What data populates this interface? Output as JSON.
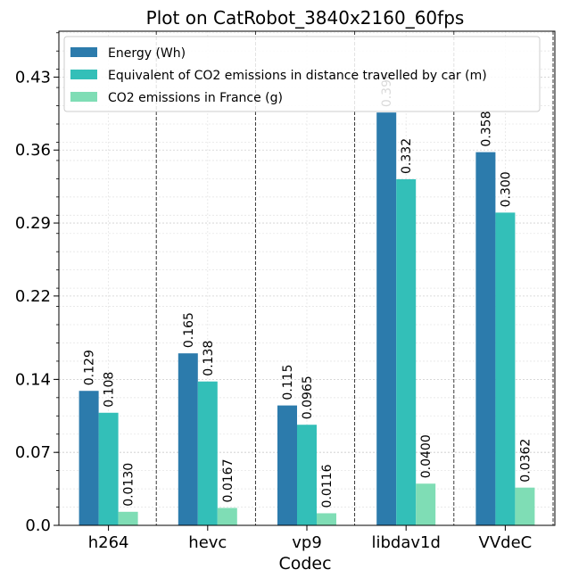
{
  "chart_data": {
    "type": "bar",
    "title": "Plot on CatRobot_3840x2160_60fps",
    "xlabel": "Codec",
    "ylabel": "",
    "categories": [
      "h264",
      "hevc",
      "vp9",
      "libdav1d",
      "VVdeC"
    ],
    "series": [
      {
        "name": "Energy (Wh)",
        "values": [
          0.129,
          0.165,
          0.115,
          0.396,
          0.358
        ],
        "labels": [
          "0.129",
          "0.165",
          "0.115",
          "0.396",
          "0.358"
        ],
        "color": "#2c7bac"
      },
      {
        "name": "Equivalent of CO2 emissions in distance travelled by car (m)",
        "values": [
          0.108,
          0.138,
          0.0965,
          0.332,
          0.3
        ],
        "labels": [
          "0.108",
          "0.138",
          "0.0965",
          "0.332",
          "0.300"
        ],
        "color": "#33bfb8"
      },
      {
        "name": "CO2 emissions in France (g)",
        "values": [
          0.013,
          0.0167,
          0.0116,
          0.04,
          0.0362
        ],
        "labels": [
          "0.0130",
          "0.0167",
          "0.0116",
          "0.0400",
          "0.0362"
        ],
        "color": "#7fddb5"
      }
    ],
    "yticks": [
      0.0,
      0.07,
      0.14,
      0.22,
      0.29,
      0.36,
      0.43
    ],
    "ytick_labels": [
      "0.0",
      "0.07",
      "0.14",
      "0.22",
      "0.29",
      "0.36",
      "0.43"
    ],
    "ylim": [
      0,
      0.474
    ],
    "grid": true,
    "legend_position": "top-left"
  }
}
